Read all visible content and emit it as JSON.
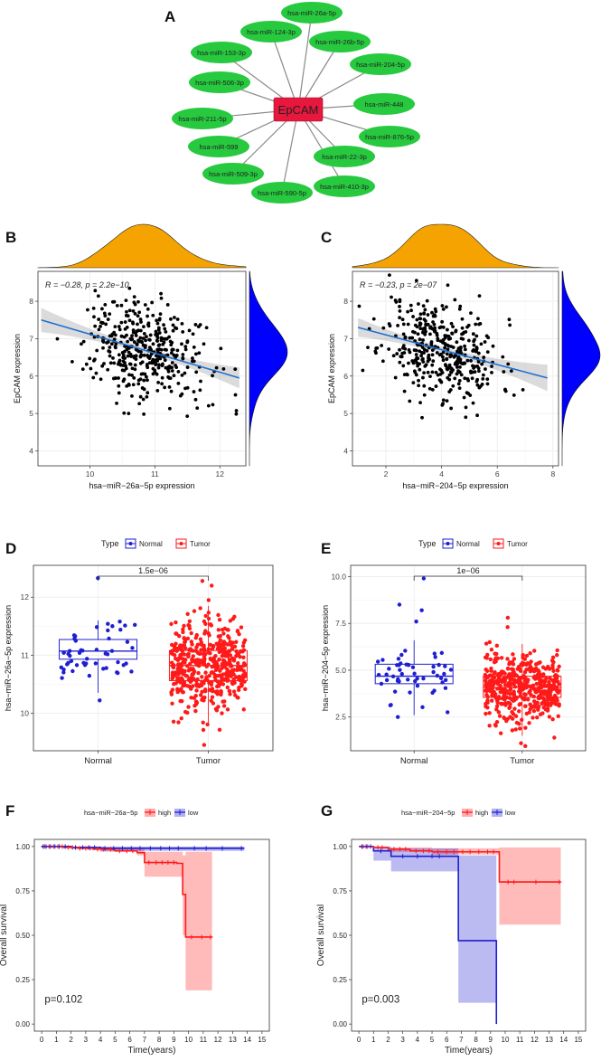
{
  "panel_letters": {
    "a": "A",
    "b": "B",
    "c": "C",
    "d": "D",
    "e": "E",
    "f": "F",
    "g": "G"
  },
  "colors": {
    "hub": "#e8173d",
    "node": "#27c93f",
    "scatter": "#000000",
    "fit": "#1f6fd1",
    "density_x": "#f5a300",
    "density_y": "#0000ff",
    "normal": "#1f1fd0",
    "tumor": "#ff1a1a"
  },
  "chart_data": [
    {
      "id": "A",
      "type": "network",
      "hub": "EpCAM",
      "nodes": [
        "hsa-miR-26a-5p",
        "hsa-miR-26b-5p",
        "hsa-miR-204-5p",
        "hsa-miR-448",
        "hsa-miR-876-5p",
        "hsa-miR-22-3p",
        "hsa-miR-410-3p",
        "hsa-miR-590-5p",
        "hsa-miR-509-3p",
        "hsa-miR-599",
        "hsa-miR-211-5p",
        "hsa-miR-506-3p",
        "hsa-miR-153-3p",
        "hsa-miR-124-3p"
      ]
    },
    {
      "id": "B",
      "type": "scatter",
      "annotation": "R = −0.28, p = 2.2e−10",
      "xlabel": "hsa−miR−26a−5p expression",
      "ylabel": "EpCAM expression",
      "xlim": [
        9.2,
        12.4
      ],
      "ylim": [
        3.6,
        8.8
      ],
      "xticks": [
        10,
        11,
        12
      ],
      "yticks": [
        4,
        5,
        6,
        7,
        8
      ],
      "fit": {
        "x": [
          9.25,
          12.3
        ],
        "y": [
          7.5,
          5.95
        ]
      },
      "x_center": 10.85,
      "x_spread": 0.45,
      "y_spread": 0.65,
      "n": 400,
      "seed": 7
    },
    {
      "id": "C",
      "type": "scatter",
      "annotation": "R = −0.23, p = 2e−07",
      "xlabel": "hsa−miR−204−5p expression",
      "ylabel": "EpCAM expression",
      "xlim": [
        0.8,
        8.2
      ],
      "ylim": [
        3.6,
        8.8
      ],
      "xticks": [
        2,
        4,
        6,
        8
      ],
      "yticks": [
        4,
        5,
        6,
        7,
        8
      ],
      "fit": {
        "x": [
          1.0,
          7.8
        ],
        "y": [
          7.3,
          5.95
        ]
      },
      "x_center": 4.0,
      "x_spread": 1.05,
      "y_spread": 0.65,
      "n": 400,
      "seed": 11
    },
    {
      "id": "D",
      "type": "box",
      "legend_title": "Type",
      "groups": [
        "Normal",
        "Tumor"
      ],
      "ylabel": "hsa−miR−26a−5p expression",
      "ylim": [
        9.35,
        12.55
      ],
      "yticks": [
        10,
        11,
        12
      ],
      "pvalue": "1.5e−06",
      "boxes": [
        {
          "q1": 10.93,
          "median": 11.07,
          "q3": 11.27,
          "lo": 10.35,
          "hi": 11.6,
          "n": 50,
          "spread": 0.26,
          "outliers": [
            12.33,
            10.22
          ]
        },
        {
          "q1": 10.56,
          "median": 10.82,
          "q3": 11.08,
          "lo": 9.8,
          "hi": 11.85,
          "n": 470,
          "spread": 0.38,
          "outliers": [
            9.45,
            12.28,
            12.2
          ]
        }
      ],
      "seed": 21
    },
    {
      "id": "E",
      "type": "box",
      "legend_title": "Type",
      "groups": [
        "Normal",
        "Tumor"
      ],
      "ylabel": "hsa−miR−204−5p expression",
      "ylim": [
        0.7,
        10.6
      ],
      "yticks": [
        2.5,
        5.0,
        7.5,
        10.0
      ],
      "pvalue": "1e−06",
      "boxes": [
        {
          "q1": 4.28,
          "median": 4.68,
          "q3": 5.32,
          "lo": 2.6,
          "hi": 6.6,
          "n": 50,
          "spread": 0.8,
          "outliers": [
            9.9,
            8.5,
            8.2,
            7.6,
            2.5
          ]
        },
        {
          "q1": 3.55,
          "median": 4.08,
          "q3": 4.68,
          "lo": 1.5,
          "hi": 6.4,
          "n": 470,
          "spread": 0.9,
          "outliers": [
            7.8,
            7.3,
            0.95,
            1.1
          ]
        }
      ],
      "seed": 33
    },
    {
      "id": "F",
      "type": "survival",
      "strata_title": "hsa−miR−26a−5p",
      "legend": [
        "high",
        "low"
      ],
      "xlabel": "Time(years)",
      "ylabel": "Overall survival",
      "xlim": [
        -0.5,
        15.5
      ],
      "ylim": [
        -0.04,
        1.04
      ],
      "xticks": [
        0,
        1,
        2,
        3,
        4,
        5,
        6,
        7,
        8,
        9,
        10,
        11,
        12,
        13,
        14,
        15
      ],
      "yticks": [
        0.0,
        0.25,
        0.5,
        0.75,
        1.0
      ],
      "yticklabels": [
        "0.00",
        "0.25",
        "0.50",
        "0.75",
        "1.00"
      ],
      "pvalue": "p=0.102",
      "high": {
        "steps": [
          [
            0,
            1.0
          ],
          [
            1.5,
            0.995
          ],
          [
            2.5,
            0.99
          ],
          [
            3.5,
            0.985
          ],
          [
            5,
            0.975
          ],
          [
            6.5,
            0.965
          ],
          [
            7,
            0.91
          ],
          [
            9.2,
            0.905
          ],
          [
            9.6,
            0.73
          ],
          [
            9.8,
            0.49
          ],
          [
            11.6,
            0.49
          ]
        ],
        "ci": [
          [
            0,
            1.0,
            1.0
          ],
          [
            2,
            0.99,
            0.999
          ],
          [
            4,
            0.97,
            0.995
          ],
          [
            6.5,
            0.95,
            0.99
          ],
          [
            7,
            0.83,
            0.97
          ],
          [
            9.6,
            0.5,
            0.95
          ],
          [
            9.8,
            0.19,
            0.97
          ],
          [
            11.6,
            0.19,
            0.97
          ]
        ],
        "censors": [
          0.2,
          0.5,
          0.8,
          1.1,
          1.4,
          1.8,
          2.1,
          2.6,
          3.0,
          3.3,
          3.8,
          4.2,
          4.7,
          5.3,
          5.8,
          6.2,
          7.3,
          7.8,
          8.2,
          8.6,
          9.0,
          10.2,
          10.9,
          11.5
        ]
      },
      "low": {
        "steps": [
          [
            0,
            1.0
          ],
          [
            2.0,
            0.995
          ],
          [
            4.0,
            0.99
          ],
          [
            13.8,
            0.99
          ]
        ],
        "ci": [
          [
            0,
            1.0,
            1.0
          ],
          [
            2.0,
            0.985,
            1.0
          ],
          [
            4.0,
            0.975,
            1.0
          ],
          [
            13.8,
            0.975,
            1.0
          ]
        ],
        "censors": [
          0.1,
          0.3,
          0.6,
          0.9,
          1.2,
          1.6,
          2.3,
          2.8,
          3.2,
          3.6,
          4.3,
          4.9,
          5.5,
          6.1,
          6.7,
          7.4,
          8.1,
          8.7,
          9.3,
          10.4,
          11.2,
          12.3,
          13.6
        ]
      }
    },
    {
      "id": "G",
      "type": "survival",
      "strata_title": "hsa−miR−204−5p",
      "legend": [
        "high",
        "low"
      ],
      "xlabel": "Time(years)",
      "ylabel": "Overall survival",
      "xlim": [
        -0.5,
        15.5
      ],
      "ylim": [
        -0.04,
        1.04
      ],
      "xticks": [
        0,
        1,
        2,
        3,
        4,
        5,
        6,
        7,
        8,
        9,
        10,
        11,
        12,
        13,
        14,
        15
      ],
      "yticks": [
        0.0,
        0.25,
        0.5,
        0.75,
        1.0
      ],
      "yticklabels": [
        "0.00",
        "0.25",
        "0.50",
        "0.75",
        "1.00"
      ],
      "pvalue": "p=0.003",
      "high": {
        "steps": [
          [
            0,
            1.0
          ],
          [
            1.0,
            0.995
          ],
          [
            2.0,
            0.985
          ],
          [
            3.5,
            0.975
          ],
          [
            5.0,
            0.97
          ],
          [
            9.5,
            0.97
          ],
          [
            9.6,
            0.8
          ],
          [
            13.8,
            0.8
          ]
        ],
        "ci": [
          [
            0,
            1.0,
            1.0
          ],
          [
            2.0,
            0.97,
            0.995
          ],
          [
            5.0,
            0.955,
            0.99
          ],
          [
            9.5,
            0.95,
            0.99
          ],
          [
            9.6,
            0.56,
            0.995
          ],
          [
            13.8,
            0.56,
            0.995
          ]
        ],
        "censors": [
          0.3,
          0.6,
          1.3,
          1.6,
          2.4,
          2.8,
          3.2,
          3.9,
          4.4,
          4.8,
          5.4,
          6.0,
          6.5,
          7.1,
          7.6,
          8.2,
          8.8,
          9.2,
          10.2,
          10.6,
          12.1,
          13.7
        ]
      },
      "low": {
        "steps": [
          [
            0,
            1.0
          ],
          [
            1.0,
            0.975
          ],
          [
            2.2,
            0.945
          ],
          [
            6.8,
            0.47
          ],
          [
            9.4,
            0.0
          ]
        ],
        "ci": [
          [
            0,
            1.0,
            1.0
          ],
          [
            1.0,
            0.92,
            1.0
          ],
          [
            2.2,
            0.86,
            0.99
          ],
          [
            6.8,
            0.12,
            0.95
          ],
          [
            9.4,
            0.12,
            0.95
          ]
        ],
        "censors": [
          0.2,
          0.5,
          0.8,
          1.5,
          3.0,
          4.0,
          5.0,
          5.5
        ]
      }
    }
  ]
}
